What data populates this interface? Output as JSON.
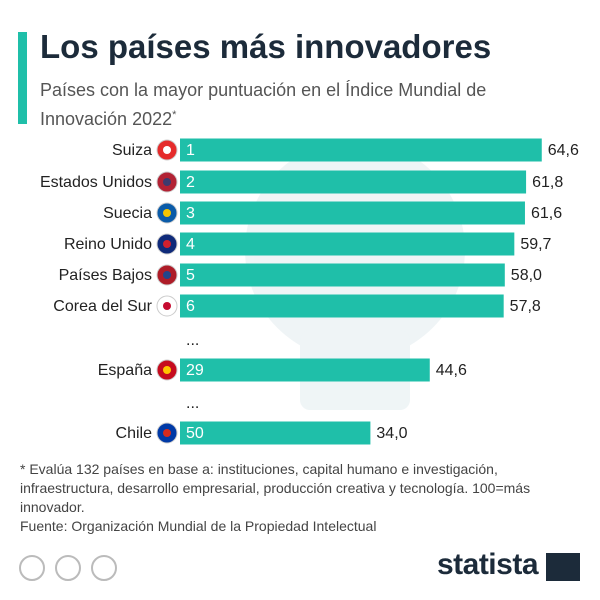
{
  "chart_data": {
    "type": "bar",
    "orientation": "horizontal",
    "title": "Los países más innovadores",
    "subtitle": "Países con la mayor puntuación en el Índice Mundial de Innovación 2022",
    "subtitle_mark": "*",
    "categories": [
      "Suiza",
      "Estados Unidos",
      "Suecia",
      "Reino Unido",
      "Países Bajos",
      "Corea del Sur",
      "...",
      "España",
      "...",
      "Chile"
    ],
    "ranks": [
      1,
      2,
      3,
      4,
      5,
      6,
      null,
      29,
      null,
      50
    ],
    "values": [
      64.6,
      61.8,
      61.6,
      59.7,
      58.0,
      57.8,
      null,
      44.6,
      null,
      34.0
    ],
    "value_labels": [
      "64,6",
      "61,8",
      "61,6",
      "59,7",
      "58,0",
      "57,8",
      null,
      "44,6",
      null,
      "34,0"
    ],
    "color": "#1fbfa9",
    "footnote": "* Evalúa 132 países en base a: instituciones, capital humano e investigación, infraestructura, desarrollo empresarial, producción creativa y tecnología. 100=más innovador.",
    "source": "Fuente: Organización Mundial de la Propiedad Intelectual",
    "brand": "statista"
  }
}
